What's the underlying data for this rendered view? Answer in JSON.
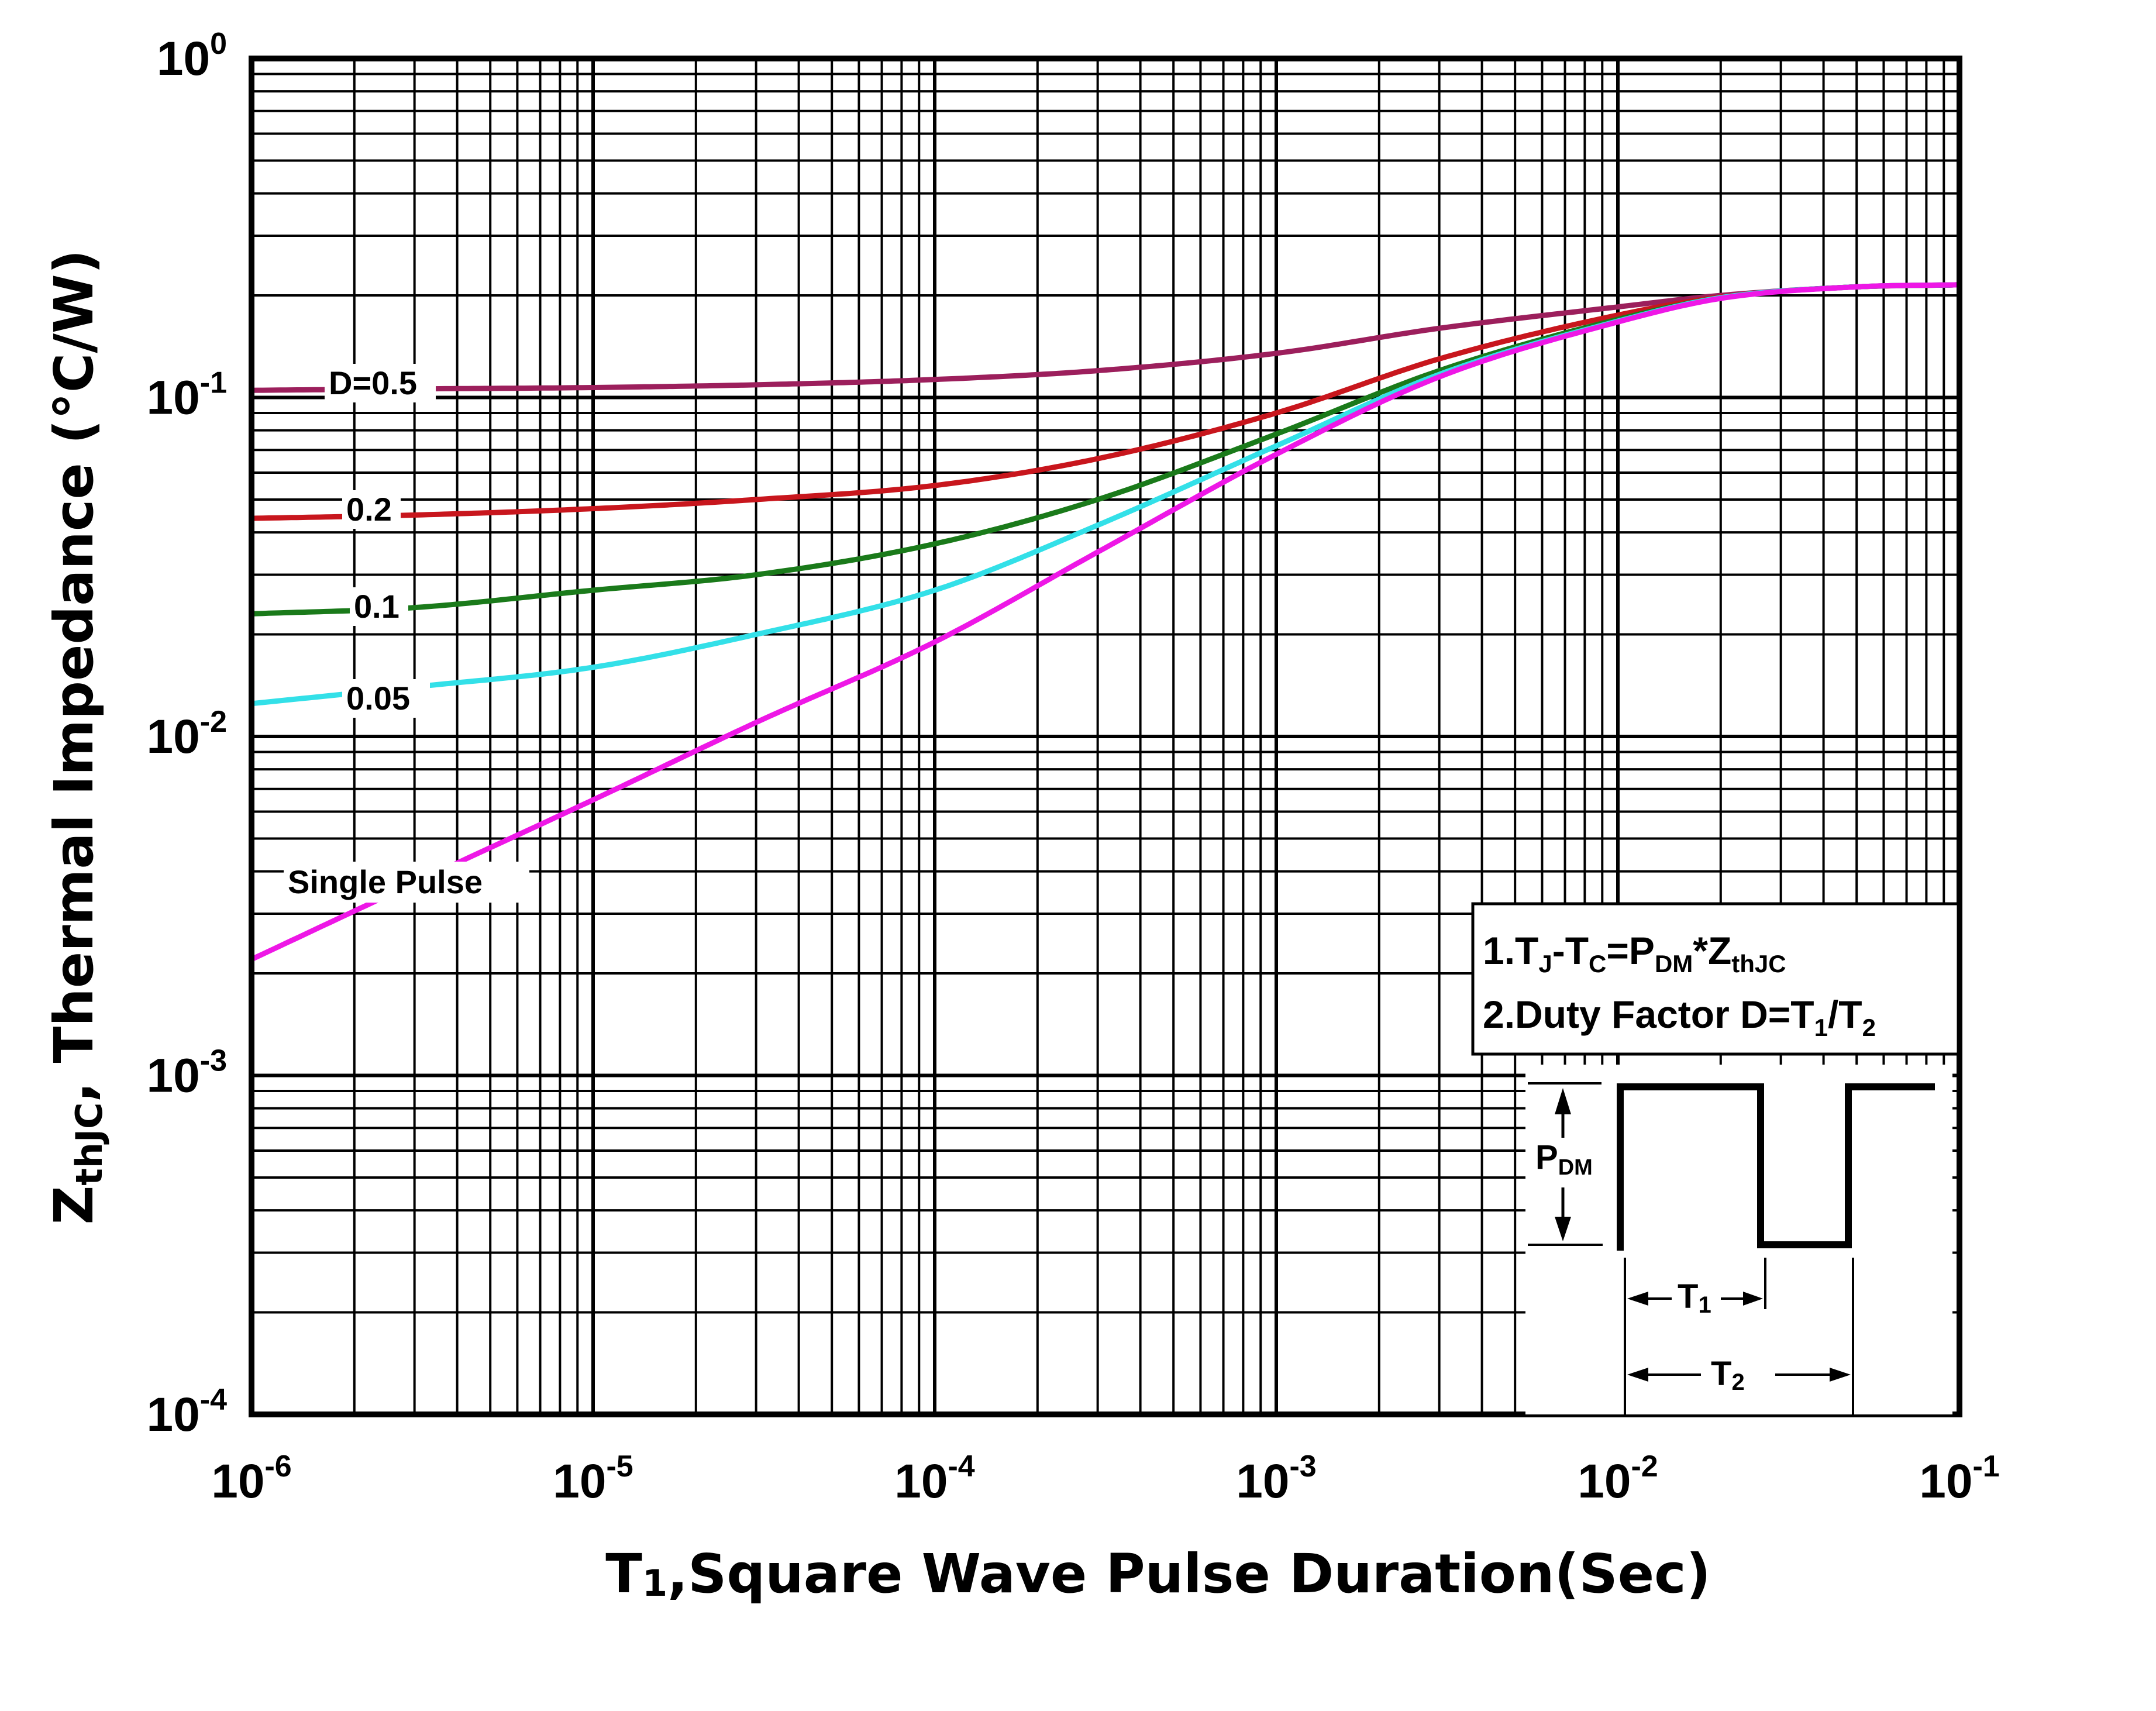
{
  "chart_data": {
    "type": "line",
    "x_scale": "log",
    "y_scale": "log",
    "xlim": [
      1e-06,
      0.1
    ],
    "ylim": [
      0.0001,
      1
    ],
    "grid": true,
    "xlabel_main": "T",
    "xlabel_sub": "1",
    "xlabel_rest": ",Square Wave Pulse Duration(Sec)",
    "ylabel_main": "Z",
    "ylabel_sub": "thJC",
    "ylabel_rest": ", Thermal  Impedance (°C/W)",
    "x_ticks": [
      {
        "base": "10",
        "exp": "-6",
        "value": 1e-06
      },
      {
        "base": "10",
        "exp": "-5",
        "value": 1e-05
      },
      {
        "base": "10",
        "exp": "-4",
        "value": 0.0001
      },
      {
        "base": "10",
        "exp": "-3",
        "value": 0.001
      },
      {
        "base": "10",
        "exp": "-2",
        "value": 0.01
      },
      {
        "base": "10",
        "exp": "-1",
        "value": 0.1
      }
    ],
    "y_ticks": [
      {
        "base": "10",
        "exp": "0",
        "value": 1
      },
      {
        "base": "10",
        "exp": "-1",
        "value": 0.1
      },
      {
        "base": "10",
        "exp": "-2",
        "value": 0.01
      },
      {
        "base": "10",
        "exp": "-3",
        "value": 0.001
      },
      {
        "base": "10",
        "exp": "-4",
        "value": 0.0001
      }
    ],
    "series": [
      {
        "name": "D=0.5",
        "label": "D=0.5",
        "color": "#9c1f5c",
        "x": [
          1e-06,
          3e-06,
          1e-05,
          3e-05,
          0.0001,
          0.0003,
          0.001,
          0.003,
          0.01,
          0.02,
          0.05,
          0.1
        ],
        "values": [
          0.105,
          0.106,
          0.107,
          0.109,
          0.113,
          0.12,
          0.135,
          0.16,
          0.185,
          0.2,
          0.212,
          0.215
        ]
      },
      {
        "name": "0.2",
        "label": "0.2",
        "color": "#c8161d",
        "x": [
          1e-06,
          3e-06,
          1e-05,
          3e-05,
          0.0001,
          0.0003,
          0.001,
          0.003,
          0.01,
          0.02,
          0.05,
          0.1
        ],
        "values": [
          0.044,
          0.045,
          0.047,
          0.05,
          0.055,
          0.066,
          0.09,
          0.13,
          0.175,
          0.198,
          0.212,
          0.215
        ]
      },
      {
        "name": "0.1",
        "label": "0.1",
        "color": "#1a7a1a",
        "x": [
          1e-06,
          3e-06,
          1e-05,
          3e-05,
          0.0001,
          0.0003,
          0.001,
          0.003,
          0.01,
          0.02,
          0.05,
          0.1
        ],
        "values": [
          0.023,
          0.024,
          0.027,
          0.03,
          0.037,
          0.05,
          0.078,
          0.12,
          0.17,
          0.197,
          0.212,
          0.215
        ]
      },
      {
        "name": "0.05",
        "label": "0.05",
        "color": "#33e0e8",
        "x": [
          1e-06,
          3e-06,
          1e-05,
          3e-05,
          0.0001,
          0.0003,
          0.001,
          0.003,
          0.01,
          0.02,
          0.05,
          0.1
        ],
        "values": [
          0.0125,
          0.014,
          0.016,
          0.02,
          0.027,
          0.042,
          0.072,
          0.117,
          0.168,
          0.197,
          0.212,
          0.215
        ]
      },
      {
        "name": "Single Pulse",
        "label": "Single Pulse",
        "color": "#ee17e6",
        "x": [
          1e-06,
          3e-06,
          1e-05,
          3e-05,
          0.0001,
          0.0003,
          0.001,
          0.003,
          0.01,
          0.02,
          0.05,
          0.1
        ],
        "values": [
          0.0022,
          0.0037,
          0.0065,
          0.011,
          0.019,
          0.035,
          0.068,
          0.115,
          0.167,
          0.196,
          0.212,
          0.215
        ]
      }
    ]
  },
  "notes": {
    "line1": {
      "p1": "1.T",
      "s1": "J",
      "p2": "-T",
      "s2": "C",
      "p3": "=P",
      "s3": "DM",
      "p4": "*Z",
      "s4": "thJC"
    },
    "line2": {
      "p1": "2.Duty Factor D=T",
      "s1": "1",
      "p2": "/T",
      "s2": "2"
    }
  },
  "pulse_diagram": {
    "pdm_main": "P",
    "pdm_sub": "DM",
    "t1_main": "T",
    "t1_sub": "1",
    "t2_main": "T",
    "t2_sub": "2"
  }
}
